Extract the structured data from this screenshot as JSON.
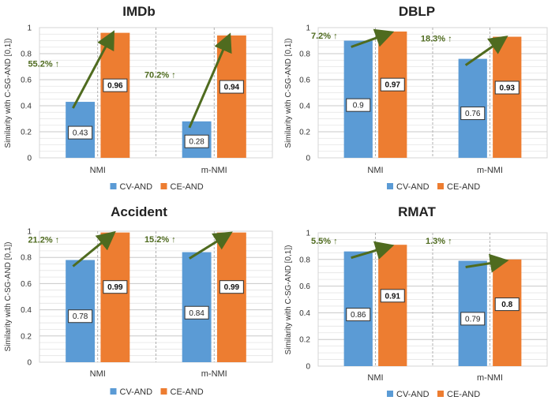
{
  "colors": {
    "cv": "#5b9bd5",
    "ce": "#ed7d31",
    "arrow": "#4f6b1f",
    "grid": "#c8c8c8"
  },
  "chart_data": [
    {
      "type": "bar",
      "title": "IMDb",
      "ylabel": "Similarity with C-SG-AND [0,1])",
      "xlabel": "",
      "ylim": [
        0,
        1
      ],
      "yticks": [
        "0",
        "0.2",
        "0.4",
        "0.6",
        "0.8",
        "1"
      ],
      "categories": [
        "NMI",
        "m-NMI"
      ],
      "series": [
        {
          "name": "CV-AND",
          "values": [
            0.43,
            0.28
          ],
          "labels": [
            "0.43",
            "0.28"
          ]
        },
        {
          "name": "CE-AND",
          "values": [
            0.96,
            0.94
          ],
          "labels": [
            "0.96",
            "0.94"
          ]
        }
      ],
      "annotations": [
        "55.2% ↑",
        "70.2% ↑"
      ],
      "legend": "bottom"
    },
    {
      "type": "bar",
      "title": "DBLP",
      "ylabel": "Similarity with C-SG-AND [0,1])",
      "xlabel": "",
      "ylim": [
        0,
        1
      ],
      "yticks": [
        "0",
        "0.2",
        "0.4",
        "0.6",
        "0.8",
        "1"
      ],
      "categories": [
        "NMI",
        "m-NMI"
      ],
      "series": [
        {
          "name": "CV-AND",
          "values": [
            0.9,
            0.76
          ],
          "labels": [
            "0.9",
            "0.76"
          ]
        },
        {
          "name": "CE-AND",
          "values": [
            0.97,
            0.93
          ],
          "labels": [
            "0.97",
            "0.93"
          ]
        }
      ],
      "annotations": [
        "7.2% ↑",
        "18.3% ↑"
      ],
      "legend": "bottom"
    },
    {
      "type": "bar",
      "title": "Accident",
      "ylabel": "Similarity with C-SG-AND [0,1])",
      "xlabel": "",
      "ylim": [
        0,
        1
      ],
      "yticks": [
        "0",
        "0.2",
        "0.4",
        "0.6",
        "0.8",
        "1"
      ],
      "categories": [
        "NMI",
        "m-NMI"
      ],
      "series": [
        {
          "name": "CV-AND",
          "values": [
            0.78,
            0.84
          ],
          "labels": [
            "0.78",
            "0.84"
          ]
        },
        {
          "name": "CE-AND",
          "values": [
            0.99,
            0.99
          ],
          "labels": [
            "0.99",
            "0.99"
          ]
        }
      ],
      "annotations": [
        "21.2% ↑",
        "15.2% ↑"
      ],
      "legend": "bottom"
    },
    {
      "type": "bar",
      "title": "RMAT",
      "ylabel": "Similarity with C-SG-AND [0,1])",
      "xlabel": "",
      "ylim": [
        0,
        1
      ],
      "yticks": [
        "0",
        "0.2",
        "0.4",
        "0.6",
        "0.8",
        "1"
      ],
      "categories": [
        "NMI",
        "m-NMI"
      ],
      "series": [
        {
          "name": "CV-AND",
          "values": [
            0.86,
            0.79
          ],
          "labels": [
            "0.86",
            "0.79"
          ]
        },
        {
          "name": "CE-AND",
          "values": [
            0.91,
            0.8
          ],
          "labels": [
            "0.91",
            "0.8"
          ]
        }
      ],
      "annotations": [
        "5.5% ↑",
        "1.3% ↑"
      ],
      "legend": "bottom"
    }
  ]
}
